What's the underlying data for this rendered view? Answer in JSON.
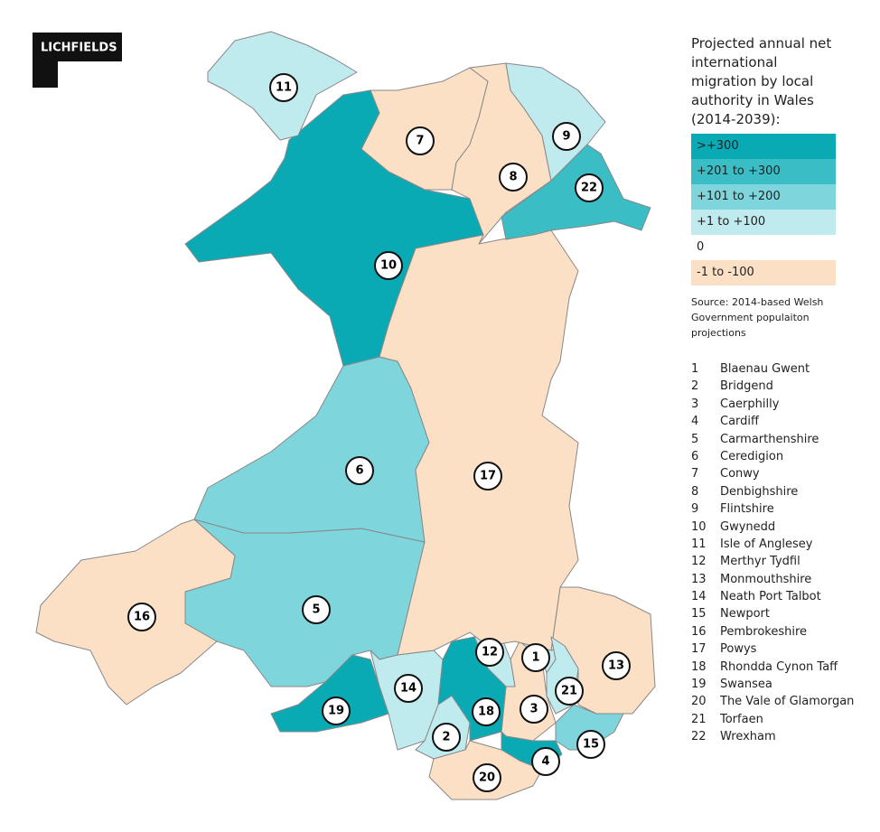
{
  "logo": "LICHFIELDS",
  "legend": {
    "title": "Projected annual net international migration by local authority in Wales (2014-2039):",
    "items": [
      {
        "label": ">+300",
        "color": "#0aaab5"
      },
      {
        "label": "+201 to +300",
        "color": "#3bbdc6"
      },
      {
        "label": "+101 to +200",
        "color": "#7fd5dc"
      },
      {
        "label": "+1 to +100",
        "color": "#bfeaee"
      },
      {
        "label": "0",
        "color": "#ffffff"
      },
      {
        "label": "-1 to -100",
        "color": "#fbe0c6"
      }
    ]
  },
  "source": "Source: 2014-based Welsh Government populaiton projections",
  "authorities": [
    {
      "number": "1",
      "name": "Blaenau Gwent",
      "color": "#bfeaee"
    },
    {
      "number": "2",
      "name": "Bridgend",
      "color": "#bfeaee"
    },
    {
      "number": "3",
      "name": "Caerphilly",
      "color": "#fbe0c6"
    },
    {
      "number": "4",
      "name": "Cardiff",
      "color": "#0aaab5"
    },
    {
      "number": "5",
      "name": "Carmarthenshire",
      "color": "#7fd5dc"
    },
    {
      "number": "6",
      "name": "Ceredigion",
      "color": "#7fd5dc"
    },
    {
      "number": "7",
      "name": "Conwy",
      "color": "#fbe0c6"
    },
    {
      "number": "8",
      "name": "Denbighshire",
      "color": "#fbe0c6"
    },
    {
      "number": "9",
      "name": "Flintshire",
      "color": "#bfeaee"
    },
    {
      "number": "10",
      "name": "Gwynedd",
      "color": "#0aaab5"
    },
    {
      "number": "11",
      "name": "Isle of Anglesey",
      "color": "#bfeaee"
    },
    {
      "number": "12",
      "name": "Merthyr Tydfil",
      "color": "#bfeaee"
    },
    {
      "number": "13",
      "name": "Monmouthshire",
      "color": "#fbe0c6"
    },
    {
      "number": "14",
      "name": "Neath Port Talbot",
      "color": "#bfeaee"
    },
    {
      "number": "15",
      "name": "Newport",
      "color": "#7fd5dc"
    },
    {
      "number": "16",
      "name": "Pembrokeshire",
      "color": "#fbe0c6"
    },
    {
      "number": "17",
      "name": "Powys",
      "color": "#fbe0c6"
    },
    {
      "number": "18",
      "name": "Rhondda Cynon Taff",
      "color": "#0aaab5"
    },
    {
      "number": "19",
      "name": "Swansea",
      "color": "#0aaab5"
    },
    {
      "number": "20",
      "name": "The Vale of Glamorgan",
      "color": "#fbe0c6"
    },
    {
      "number": "21",
      "name": "Torfaen",
      "color": "#bfeaee"
    },
    {
      "number": "22",
      "name": "Wrexham",
      "color": "#3bbdc6"
    }
  ]
}
